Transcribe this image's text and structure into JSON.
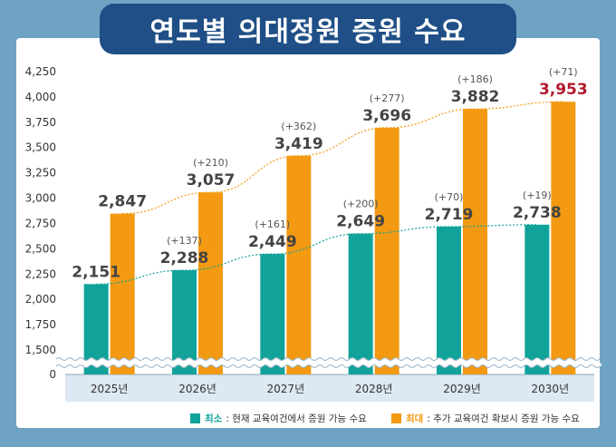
{
  "title": "연도별 의대정원 증원 수요",
  "colors": {
    "min": "#11a39a",
    "max": "#f39a12",
    "max_highlight": "#b3182c",
    "title_bg": "#1f4f86",
    "frame": "#6fa3c3",
    "axis_band": "#dce8f2"
  },
  "legend": [
    {
      "key": "최소",
      "desc": " : 현재 교육여건에서 증원 가능 수요"
    },
    {
      "key": "최대",
      "desc": " : 추가 교육여건 확보시 증원 가능 수요"
    }
  ],
  "chart_data": {
    "type": "bar",
    "title": "연도별 의대정원 증원 수요",
    "categories": [
      "2025년",
      "2026년",
      "2027년",
      "2028년",
      "2029년",
      "2030년"
    ],
    "series": [
      {
        "name": "최소",
        "values": [
          2151,
          2288,
          2449,
          2649,
          2719,
          2738
        ],
        "labels": [
          "2,151",
          "2,288",
          "2,449",
          "2,649",
          "2,719",
          "2,738"
        ],
        "deltas": [
          "",
          "(+137)",
          "(+161)",
          "(+200)",
          "(+70)",
          "(+19)"
        ]
      },
      {
        "name": "최대",
        "values": [
          2847,
          3057,
          3419,
          3696,
          3882,
          3953
        ],
        "labels": [
          "2,847",
          "3,057",
          "3,419",
          "3,696",
          "3,882",
          "3,953"
        ],
        "deltas": [
          "",
          "(+210)",
          "(+362)",
          "(+277)",
          "(+186)",
          "(+71)"
        ]
      }
    ],
    "ylim": [
      1500,
      4250
    ],
    "y_break_to": 0,
    "yticks": [
      1500,
      1750,
      2000,
      2250,
      2500,
      2750,
      3000,
      3250,
      3500,
      3750,
      4000,
      4250
    ],
    "ytick_labels": [
      "0",
      "1,500",
      "1,750",
      "2,000",
      "2,250",
      "2,500",
      "2,750",
      "3,000",
      "3,250",
      "3,500",
      "3,750",
      "4,000",
      "4,250"
    ],
    "trend_lines": true,
    "grid": false,
    "legend_position": "bottom-right"
  }
}
